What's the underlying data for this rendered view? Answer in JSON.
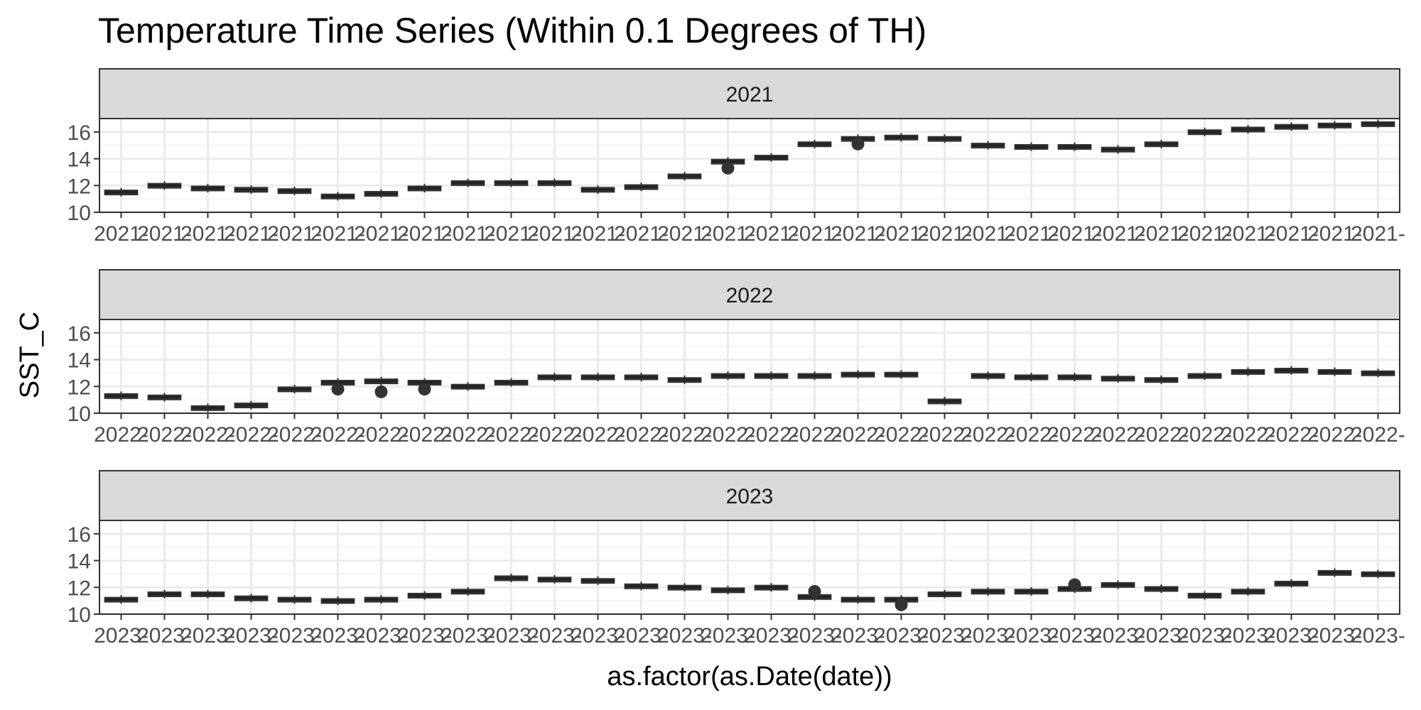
{
  "title": "Temperature Time Series (Within 0.1 Degrees of TH)",
  "chart_data": {
    "type": "box",
    "title": "Temperature Time Series (Within 0.1 Degrees of TH)",
    "xlabel": "as.factor(as.Date(date))",
    "ylabel": "SST_C",
    "ylim": [
      10,
      17
    ],
    "y_ticks": [
      10,
      12,
      14,
      16
    ],
    "grid": true,
    "legend": "none",
    "theme": "bw",
    "colors": {
      "box_fill": "#ffffff",
      "box_line": "#333333",
      "strip_fill": "#d9d9d9",
      "panel_border": "#333333",
      "grid_major": "#ebebeb",
      "grid_minor": "#f5f5f5",
      "axis_text": "#4d4d4d"
    },
    "facets": [
      {
        "strip": "2021",
        "x_prefix": "2021",
        "medians": [
          11.5,
          12.0,
          11.8,
          11.7,
          11.6,
          11.2,
          11.4,
          11.8,
          12.2,
          12.2,
          12.2,
          11.7,
          11.9,
          12.7,
          13.8,
          14.1,
          15.1,
          15.5,
          15.6,
          15.5,
          15.0,
          14.9,
          14.9,
          14.7,
          15.1,
          16.0,
          16.2,
          16.4,
          16.5,
          16.6
        ],
        "outliers": [
          {
            "index": 14,
            "value": 13.3
          },
          {
            "index": 17,
            "value": 15.1
          }
        ]
      },
      {
        "strip": "2022",
        "x_prefix": "2022",
        "medians": [
          11.3,
          11.2,
          10.4,
          10.6,
          11.8,
          12.3,
          12.4,
          12.3,
          12.0,
          12.3,
          12.7,
          12.7,
          12.7,
          12.5,
          12.8,
          12.8,
          12.8,
          12.9,
          12.9,
          10.9,
          12.8,
          12.7,
          12.7,
          12.6,
          12.5,
          12.8,
          13.1,
          13.2,
          13.1,
          13.0
        ],
        "outliers": [
          {
            "index": 5,
            "value": 11.8
          },
          {
            "index": 6,
            "value": 11.6
          },
          {
            "index": 7,
            "value": 11.8
          }
        ]
      },
      {
        "strip": "2023",
        "x_prefix": "2023",
        "medians": [
          11.1,
          11.5,
          11.5,
          11.2,
          11.1,
          11.0,
          11.1,
          11.4,
          11.7,
          12.7,
          12.6,
          12.5,
          12.1,
          12.0,
          11.8,
          12.0,
          11.3,
          11.1,
          11.1,
          11.5,
          11.7,
          11.7,
          11.9,
          12.2,
          11.9,
          11.4,
          11.7,
          12.3,
          13.1,
          13.0
        ],
        "outliers": [
          {
            "index": 16,
            "value": 11.7
          },
          {
            "index": 18,
            "value": 10.7
          },
          {
            "index": 22,
            "value": 12.2
          }
        ]
      }
    ]
  }
}
